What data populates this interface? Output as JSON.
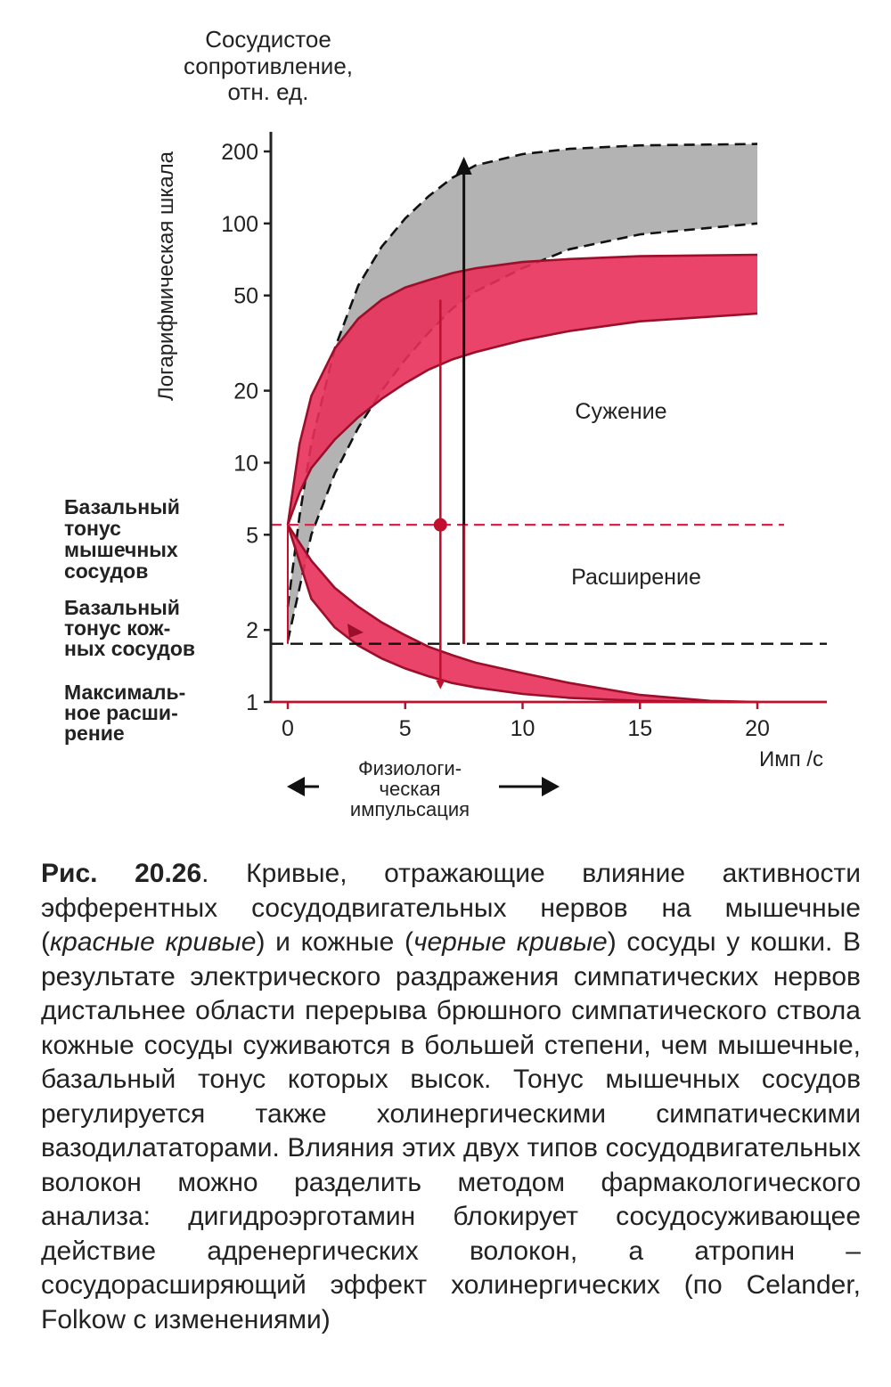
{
  "chart_data": {
    "type": "area",
    "y_title": [
      "Сосудистое",
      "сопротивление,",
      "отн. ед."
    ],
    "y_scale_label": "Логарифмическая шкала",
    "y_scale": "log",
    "ylim": [
      1,
      200
    ],
    "y_ticks": [
      1,
      2,
      5,
      10,
      20,
      50,
      100,
      200
    ],
    "xlim": [
      0,
      20
    ],
    "x_ticks": [
      0,
      5,
      10,
      15,
      20
    ],
    "xlabel": "Имп /с",
    "row_labels": {
      "basal_muscle": [
        "Базальный",
        "тонус",
        "мышечных",
        "сосудов"
      ],
      "basal_skin": [
        "Базальный",
        "тонус кож-",
        "ных сосудов"
      ],
      "max_dilation": [
        "Максималь-",
        "ное расши-",
        "рение"
      ]
    },
    "region_labels": {
      "constriction": "Сужение",
      "dilation": "Расширение"
    },
    "physiological_range": [
      "Физиологи-",
      "ческая",
      "импульсация"
    ],
    "bands": [
      {
        "color": "#9a9a9a",
        "type": "skin_constriction",
        "upper": [
          [
            0,
            2.5
          ],
          [
            0.5,
            6
          ],
          [
            1,
            12
          ],
          [
            2,
            30
          ],
          [
            3,
            55
          ],
          [
            4,
            80
          ],
          [
            5,
            105
          ],
          [
            6,
            130
          ],
          [
            7,
            155
          ],
          [
            8,
            175
          ],
          [
            10,
            195
          ],
          [
            12,
            205
          ],
          [
            15,
            212
          ],
          [
            20,
            215
          ]
        ],
        "lower": [
          [
            0,
            1.8
          ],
          [
            0.5,
            3
          ],
          [
            1,
            5
          ],
          [
            2,
            9
          ],
          [
            3,
            14
          ],
          [
            4,
            20
          ],
          [
            5,
            27
          ],
          [
            6,
            35
          ],
          [
            7,
            44
          ],
          [
            8,
            52
          ],
          [
            10,
            65
          ],
          [
            12,
            78
          ],
          [
            15,
            90
          ],
          [
            20,
            100
          ]
        ]
      },
      {
        "color": "#e8305a",
        "type": "muscle_constriction",
        "upper": [
          [
            0,
            5.5
          ],
          [
            0.5,
            12
          ],
          [
            1,
            19
          ],
          [
            2,
            30
          ],
          [
            3,
            40
          ],
          [
            4,
            48
          ],
          [
            5,
            54
          ],
          [
            6,
            58
          ],
          [
            7,
            62
          ],
          [
            8,
            65
          ],
          [
            10,
            69
          ],
          [
            12,
            71
          ],
          [
            15,
            73
          ],
          [
            20,
            74
          ]
        ],
        "lower": [
          [
            0,
            5.5
          ],
          [
            0.5,
            7.5
          ],
          [
            1,
            9.5
          ],
          [
            2,
            12.5
          ],
          [
            3,
            15.5
          ],
          [
            4,
            18.5
          ],
          [
            5,
            21.5
          ],
          [
            6,
            24.5
          ],
          [
            7,
            27
          ],
          [
            8,
            29
          ],
          [
            10,
            32.5
          ],
          [
            12,
            35.5
          ],
          [
            15,
            39
          ],
          [
            20,
            42
          ]
        ]
      },
      {
        "color": "#e8305a",
        "type": "muscle_dilation",
        "upper": [
          [
            0,
            5.5
          ],
          [
            1,
            3.9
          ],
          [
            2,
            3.0
          ],
          [
            3,
            2.5
          ],
          [
            4,
            2.15
          ],
          [
            5,
            1.9
          ],
          [
            6,
            1.7
          ],
          [
            7,
            1.57
          ],
          [
            8,
            1.46
          ],
          [
            10,
            1.32
          ],
          [
            12,
            1.2
          ],
          [
            15,
            1.07
          ],
          [
            18,
            1.01
          ],
          [
            20,
            1.0
          ]
        ],
        "lower": [
          [
            0,
            5.5
          ],
          [
            1,
            2.7
          ],
          [
            2,
            2.05
          ],
          [
            3,
            1.72
          ],
          [
            4,
            1.52
          ],
          [
            5,
            1.38
          ],
          [
            6,
            1.28
          ],
          [
            7,
            1.2
          ],
          [
            8,
            1.15
          ],
          [
            10,
            1.08
          ],
          [
            12,
            1.04
          ],
          [
            15,
            1.01
          ],
          [
            18,
            1.0
          ],
          [
            20,
            1.0
          ]
        ]
      }
    ],
    "reference_lines": {
      "basal_muscle": 5.5,
      "basal_skin": 1.75,
      "max_dilation": 1.0
    },
    "dilation_arrow_x": 6.5,
    "muscle_basal_point": [
      6.5,
      5.5
    ],
    "skin_arrow_x": 7.5
  },
  "caption": {
    "fig_no": "Рис. 20.26",
    "t1": ". Кривые, отражающие влияние активности эфферентных сосудодвигательных нервов на мышечные (",
    "i1": "красные кривые",
    "t2": ") и кожные (",
    "i2": "черные кривые",
    "t3": ") сосуды у кошки. В результате электрического раздражения симпатических нервов дистальнее области перерыва брюшного симпатического ствола кожные сосуды суживаются в большей степени, чем мышечные, базальный тонус которых высок. Тонус мышечных сосудов регулируется также холинергическими симпатическими вазодилататорами. Влияния этих двух типов сосудодвигательных волокон можно разделить методом фармакологического анализа: дигидроэрготамин блокирует сосудосуживающее действие адренергических волокон, а атропин – сосудорасширяющий эффект холинергических (по Celander, Folkow с изменениями)"
  }
}
